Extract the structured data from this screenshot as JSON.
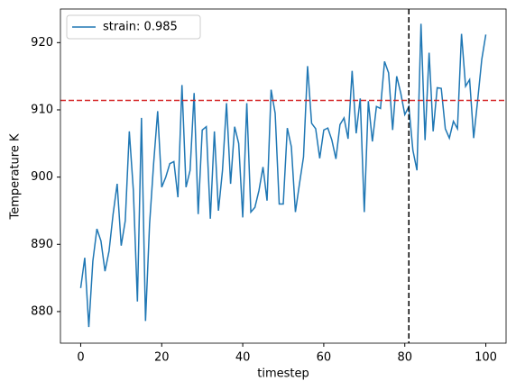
{
  "chart_data": {
    "type": "line",
    "xlabel": "timestep",
    "ylabel": "Temperature K",
    "x": [
      0,
      1,
      2,
      3,
      4,
      5,
      6,
      7,
      8,
      9,
      10,
      11,
      12,
      13,
      14,
      15,
      16,
      17,
      18,
      19,
      20,
      21,
      22,
      23,
      24,
      25,
      26,
      27,
      28,
      29,
      30,
      31,
      32,
      33,
      34,
      35,
      36,
      37,
      38,
      39,
      40,
      41,
      42,
      43,
      44,
      45,
      46,
      47,
      48,
      49,
      50,
      51,
      52,
      53,
      54,
      55,
      56,
      57,
      58,
      59,
      60,
      61,
      62,
      63,
      64,
      65,
      66,
      67,
      68,
      69,
      70,
      71,
      72,
      73,
      74,
      75,
      76,
      77,
      78,
      79,
      80,
      81,
      82,
      83,
      84,
      85,
      86,
      87,
      88,
      89,
      90,
      91,
      92,
      93,
      94,
      95,
      96,
      97,
      98,
      99,
      100
    ],
    "series": [
      {
        "name": "strain: 0.985",
        "color": "#1f77b4",
        "values": [
          883.5,
          888,
          877.7,
          887.5,
          892.3,
          890.5,
          886,
          889,
          894.5,
          899,
          889.8,
          893.5,
          906.8,
          898,
          881.5,
          908.8,
          878.6,
          893,
          902,
          909.8,
          898.5,
          900,
          902,
          902.3,
          897,
          913.7,
          898.5,
          901,
          912.5,
          894.5,
          907,
          907.5,
          893.8,
          906.8,
          895,
          901,
          911,
          899,
          907.5,
          905,
          894,
          911,
          894.8,
          895.5,
          898,
          901.5,
          896.5,
          913,
          909.5,
          896,
          896,
          907.3,
          904.5,
          894.8,
          899,
          903,
          916.5,
          908,
          907.2,
          902.8,
          907,
          907.3,
          905.5,
          902.7,
          907.8,
          908.8,
          905.7,
          915.8,
          906.5,
          911.7,
          894.8,
          911.3,
          905.3,
          910.5,
          910.2,
          917.2,
          915.5,
          907,
          915,
          912.5,
          909.3,
          910.5,
          904,
          901,
          922.8,
          905.5,
          918.5,
          906.8,
          913.3,
          913.2,
          907.2,
          905.8,
          908.3,
          907.2,
          921.3,
          913.5,
          914.5,
          905.8,
          911.5,
          917.5,
          921.2
        ]
      }
    ],
    "hlines": [
      {
        "value": 911.4,
        "color": "#d62728"
      }
    ],
    "vlines": [
      {
        "value": 81,
        "color": "#000000"
      }
    ],
    "xlim": [
      -5,
      105
    ],
    "ylim": [
      875.3,
      925
    ],
    "xticks": [
      0,
      20,
      40,
      60,
      80,
      100
    ],
    "yticks": [
      880,
      890,
      900,
      910,
      920
    ],
    "legend": "upper left"
  }
}
